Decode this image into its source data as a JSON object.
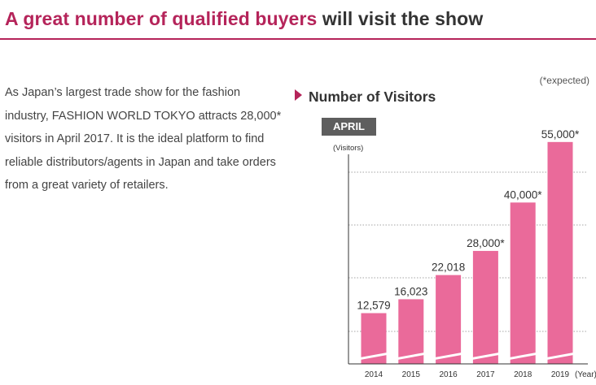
{
  "header": {
    "title_accent": "A great number of qualified buyers",
    "title_rest": "will visit the show"
  },
  "intro": {
    "text": "As Japan’s largest trade show for the fashion industry, FASHION WORLD TOKYO attracts 28,000* visitors in April 2017. It is the ideal platform to find reliable distributors/agents in Japan and take orders from a great variety of retailers."
  },
  "colors": {
    "accent": "#b5245a",
    "bar": "#ea6a9a",
    "badge": "#5e5e5e"
  },
  "chart_data": {
    "type": "bar",
    "title": "Number of Visitors",
    "period": "APRIL",
    "ylabel": "(Visitors)",
    "xlabel": "(Year)",
    "note": "(*expected)",
    "categories": [
      "2014",
      "2015",
      "2016",
      "2017",
      "2018",
      "2019"
    ],
    "values": [
      12579,
      16023,
      22018,
      28000,
      40000,
      55000
    ],
    "data_labels": [
      "12,579",
      "16,023",
      "22,018",
      "28,000*",
      "40,000*",
      "55,000*"
    ],
    "ylim": [
      0,
      60000
    ],
    "grid": true,
    "broken_axis": true
  }
}
